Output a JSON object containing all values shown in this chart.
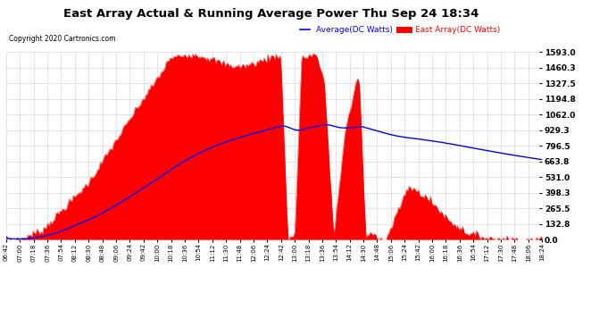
{
  "title": "East Array Actual & Running Average Power Thu Sep 24 18:34",
  "copyright": "Copyright 2020 Cartronics.com",
  "legend_avg": "Average(DC Watts)",
  "legend_east": "East Array(DC Watts)",
  "ylabel_right_ticks": [
    0.0,
    132.8,
    265.5,
    398.3,
    531.0,
    663.8,
    796.5,
    929.3,
    1062.0,
    1194.8,
    1327.5,
    1460.3,
    1593.0
  ],
  "ymax": 1593.0,
  "ymin": 0.0,
  "bg_color": "#ffffff",
  "grid_color": "#bbbbbb",
  "fill_color": "#ff0000",
  "line_color": "#0000ff",
  "title_color": "#000000",
  "copyright_color": "#000000",
  "legend_avg_color": "#0000ff",
  "legend_east_color": "#ff0000",
  "time_labels": [
    "06:42",
    "07:00",
    "07:18",
    "07:36",
    "07:54",
    "08:12",
    "08:30",
    "08:48",
    "09:06",
    "09:24",
    "09:42",
    "10:00",
    "10:18",
    "10:36",
    "10:54",
    "11:12",
    "11:30",
    "11:48",
    "12:06",
    "12:24",
    "12:42",
    "13:00",
    "13:18",
    "13:36",
    "13:54",
    "14:12",
    "14:30",
    "14:48",
    "15:06",
    "15:24",
    "15:42",
    "16:00",
    "16:18",
    "16:36",
    "16:54",
    "17:12",
    "17:30",
    "17:48",
    "18:06",
    "18:24"
  ]
}
